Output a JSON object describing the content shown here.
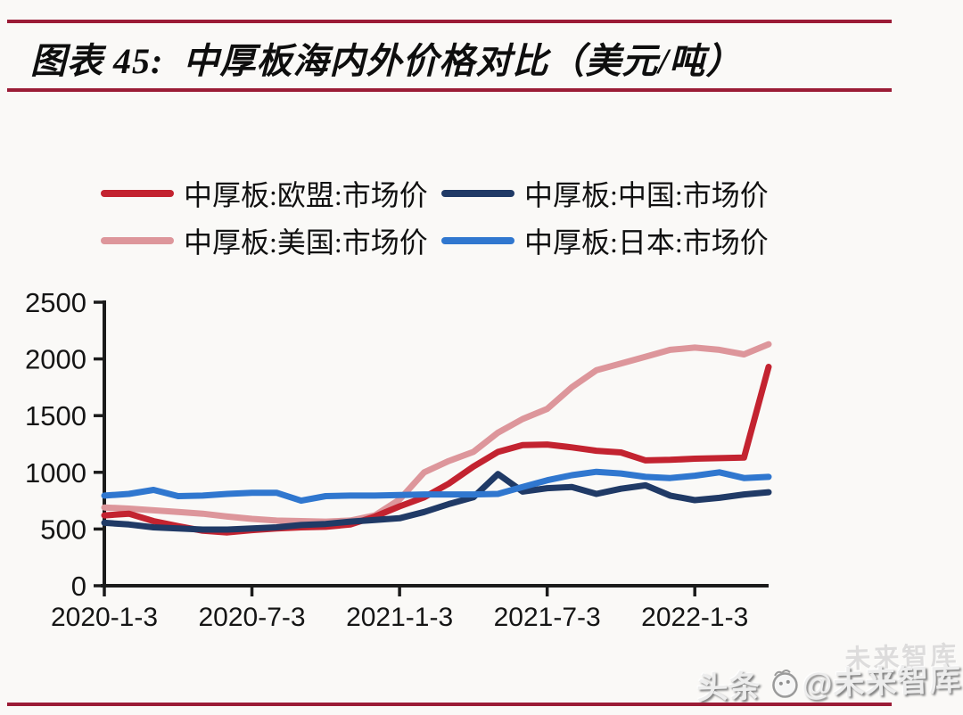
{
  "page": {
    "background": "#faf9f7",
    "rule_color": "#9b1c36"
  },
  "header": {
    "title": "图表 45:  中厚板海内外价格对比（美元/吨）"
  },
  "watermark": {
    "prefix": "头条",
    "handle": "@未来智库",
    "ghost": "未来智库"
  },
  "chart_data": {
    "type": "line",
    "title": "中厚板海内外价格对比（美元/吨）",
    "ylabel": "",
    "xlabel": "",
    "ylim": [
      0,
      2500
    ],
    "y_ticks": [
      0,
      500,
      1000,
      1500,
      2000,
      2500
    ],
    "grid": false,
    "legend_position": "top",
    "axis_color": "#1b1b1b",
    "text_color": "#151515",
    "x": [
      "2020-1",
      "2020-2",
      "2020-3",
      "2020-4",
      "2020-5",
      "2020-6",
      "2020-7",
      "2020-8",
      "2020-9",
      "2020-10",
      "2020-11",
      "2020-12",
      "2021-1",
      "2021-2",
      "2021-3",
      "2021-4",
      "2021-5",
      "2021-6",
      "2021-7",
      "2021-8",
      "2021-9",
      "2021-10",
      "2021-11",
      "2021-12",
      "2022-1",
      "2022-2",
      "2022-3",
      "2022-4"
    ],
    "x_tick_labels": [
      "2020-1-3",
      "2020-7-3",
      "2021-1-3",
      "2021-7-3",
      "2022-1-3"
    ],
    "x_tick_indices": [
      0,
      6,
      12,
      18,
      24
    ],
    "series": [
      {
        "name": "中厚板:欧盟:市场价",
        "color": "#c32330",
        "values": [
          620,
          635,
          570,
          525,
          485,
          470,
          490,
          505,
          515,
          520,
          540,
          610,
          700,
          780,
          900,
          1050,
          1180,
          1240,
          1245,
          1220,
          1190,
          1175,
          1105,
          1110,
          1120,
          1125,
          1130,
          1930
        ]
      },
      {
        "name": "中厚板:中国:市场价",
        "color": "#203a66",
        "values": [
          555,
          540,
          515,
          505,
          495,
          495,
          505,
          515,
          535,
          545,
          565,
          580,
          595,
          650,
          720,
          780,
          985,
          830,
          860,
          870,
          810,
          855,
          885,
          795,
          755,
          775,
          805,
          825
        ]
      },
      {
        "name": "中厚板:美国:市场价",
        "color": "#dd969b",
        "values": [
          690,
          680,
          665,
          650,
          635,
          610,
          590,
          575,
          570,
          565,
          575,
          620,
          760,
          1000,
          1100,
          1180,
          1350,
          1470,
          1560,
          1750,
          1900,
          1960,
          2020,
          2080,
          2100,
          2080,
          2040,
          2130
        ]
      },
      {
        "name": "中厚板:日本:市场价",
        "color": "#3077cf",
        "values": [
          795,
          810,
          845,
          790,
          795,
          810,
          820,
          820,
          750,
          790,
          795,
          795,
          800,
          805,
          805,
          805,
          810,
          870,
          930,
          975,
          1005,
          990,
          960,
          950,
          970,
          1000,
          950,
          960
        ]
      }
    ]
  }
}
